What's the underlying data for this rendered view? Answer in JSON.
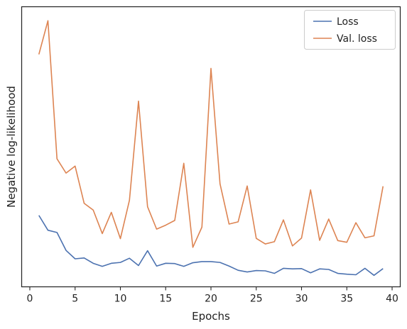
{
  "chart_data": {
    "type": "line",
    "xlabel": "Epochs",
    "ylabel": "Negative log-likelihood",
    "xlim": [
      -0.9,
      40.9
    ],
    "ylim": [
      0,
      100
    ],
    "x_ticks": [
      0,
      5,
      10,
      15,
      20,
      25,
      30,
      35,
      40
    ],
    "show_y_tick_labels": false,
    "grid": false,
    "legend_position": "top-right",
    "series": [
      {
        "name": "Loss",
        "color": "#4c72b0",
        "x": [
          1,
          2,
          3,
          4,
          5,
          6,
          7,
          8,
          9,
          10,
          11,
          12,
          13,
          14,
          15,
          16,
          17,
          18,
          19,
          20,
          21,
          22,
          23,
          24,
          25,
          26,
          27,
          28,
          29,
          30,
          31,
          32,
          33,
          34,
          35,
          36,
          37,
          38,
          39
        ],
        "values": [
          25.5,
          20.2,
          19.4,
          13.0,
          10.0,
          10.3,
          8.4,
          7.3,
          8.4,
          8.7,
          10.2,
          7.6,
          12.9,
          7.4,
          8.4,
          8.3,
          7.3,
          8.6,
          9.0,
          9.0,
          8.7,
          7.4,
          5.9,
          5.3,
          5.8,
          5.7,
          4.8,
          6.6,
          6.4,
          6.5,
          5.0,
          6.4,
          6.2,
          4.8,
          4.5,
          4.3,
          6.6,
          4.1,
          6.5
        ]
      },
      {
        "name": "Val. loss",
        "color": "#dd8452",
        "x": [
          1,
          2,
          3,
          4,
          5,
          6,
          7,
          8,
          9,
          10,
          11,
          12,
          13,
          14,
          15,
          16,
          17,
          18,
          19,
          20,
          21,
          22,
          23,
          24,
          25,
          26,
          27,
          28,
          29,
          30,
          31,
          32,
          33,
          34,
          35,
          36,
          37,
          38,
          39
        ],
        "values": [
          83.0,
          95.0,
          45.7,
          40.6,
          43.1,
          29.8,
          27.4,
          19.0,
          26.6,
          17.2,
          30.9,
          66.3,
          28.6,
          20.6,
          22.0,
          23.7,
          44.1,
          14.1,
          21.3,
          78.0,
          36.8,
          22.4,
          23.2,
          36.0,
          17.3,
          15.3,
          16.1,
          23.9,
          14.6,
          17.4,
          34.6,
          16.6,
          24.2,
          16.5,
          15.9,
          22.9,
          17.5,
          18.2,
          35.9
        ]
      }
    ]
  }
}
